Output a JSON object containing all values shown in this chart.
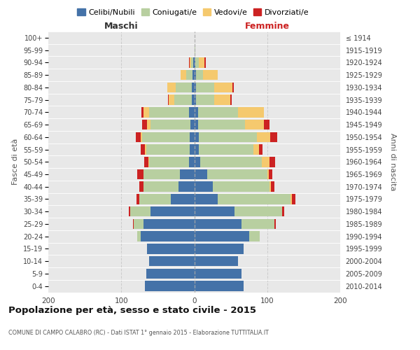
{
  "age_groups": [
    "0-4",
    "5-9",
    "10-14",
    "15-19",
    "20-24",
    "25-29",
    "30-34",
    "35-39",
    "40-44",
    "45-49",
    "50-54",
    "55-59",
    "60-64",
    "65-69",
    "70-74",
    "75-79",
    "80-84",
    "85-89",
    "90-94",
    "95-99",
    "100+"
  ],
  "birth_years": [
    "2010-2014",
    "2005-2009",
    "2000-2004",
    "1995-1999",
    "1990-1994",
    "1985-1989",
    "1980-1984",
    "1975-1979",
    "1970-1974",
    "1965-1969",
    "1960-1964",
    "1955-1959",
    "1950-1954",
    "1945-1949",
    "1940-1944",
    "1935-1939",
    "1930-1934",
    "1925-1929",
    "1920-1924",
    "1915-1919",
    "≤ 1914"
  ],
  "males": {
    "celibi": [
      68,
      66,
      62,
      65,
      73,
      70,
      60,
      32,
      22,
      20,
      7,
      6,
      6,
      5,
      7,
      3,
      3,
      2,
      1,
      0,
      0
    ],
    "coniugati": [
      0,
      0,
      0,
      0,
      5,
      13,
      28,
      43,
      48,
      50,
      55,
      60,
      65,
      55,
      55,
      24,
      22,
      9,
      3,
      0,
      0
    ],
    "vedovi": [
      0,
      0,
      0,
      0,
      0,
      0,
      0,
      0,
      0,
      0,
      1,
      2,
      2,
      5,
      8,
      8,
      12,
      8,
      2,
      0,
      0
    ],
    "divorziati": [
      0,
      0,
      0,
      0,
      0,
      1,
      2,
      4,
      5,
      8,
      6,
      5,
      7,
      6,
      2,
      1,
      0,
      0,
      1,
      0,
      0
    ]
  },
  "females": {
    "nubili": [
      68,
      65,
      60,
      68,
      75,
      65,
      55,
      32,
      25,
      18,
      8,
      6,
      6,
      5,
      5,
      2,
      2,
      2,
      1,
      0,
      0
    ],
    "coniugate": [
      0,
      0,
      0,
      0,
      15,
      45,
      65,
      100,
      78,
      82,
      85,
      75,
      80,
      65,
      55,
      25,
      25,
      10,
      5,
      1,
      0
    ],
    "vedove": [
      0,
      0,
      0,
      0,
      0,
      0,
      0,
      2,
      2,
      2,
      10,
      8,
      18,
      25,
      35,
      22,
      25,
      20,
      8,
      0,
      0
    ],
    "divorziate": [
      0,
      0,
      0,
      0,
      0,
      2,
      3,
      5,
      5,
      5,
      8,
      5,
      10,
      8,
      0,
      2,
      2,
      0,
      2,
      0,
      0
    ]
  },
  "colors": {
    "celibi": "#4472a8",
    "coniugati": "#b8cfa0",
    "vedovi": "#f5c96e",
    "divorziati": "#cc2222"
  },
  "title": "Popolazione per età, sesso e stato civile - 2015",
  "subtitle": "COMUNE DI CAMPO CALABRO (RC) - Dati ISTAT 1° gennaio 2015 - Elaborazione TUTTITALIA.IT",
  "xlabel_left": "Maschi",
  "xlabel_right": "Femmine",
  "ylabel_left": "Fasce di età",
  "ylabel_right": "Anni di nascita",
  "xlim": 200,
  "legend_labels": [
    "Celibi/Nubili",
    "Coniugati/e",
    "Vedovi/e",
    "Divorziati/e"
  ]
}
